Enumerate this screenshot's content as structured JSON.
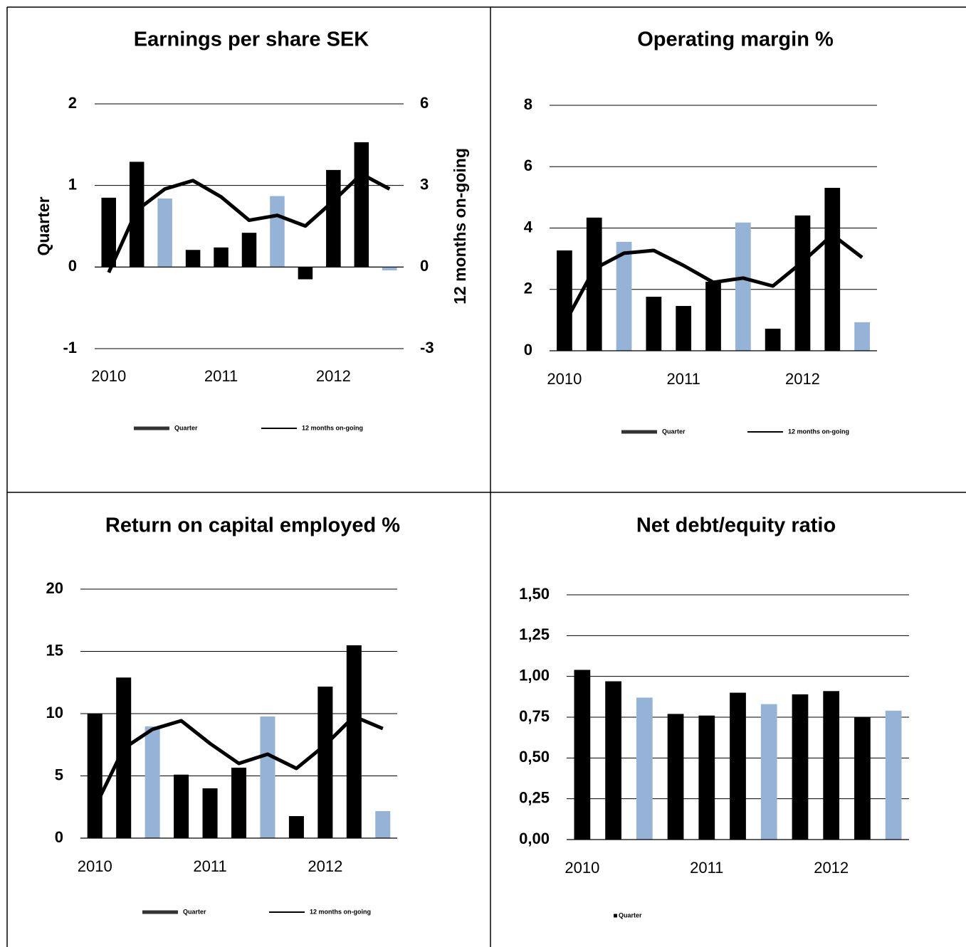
{
  "chart_data": [
    {
      "type": "combo",
      "title": "Earnings per share SEK",
      "categories": [
        "2010",
        null,
        null,
        null,
        "2011",
        null,
        null,
        null,
        "2012",
        null,
        null
      ],
      "series": [
        {
          "name": "Quarter",
          "type": "bar",
          "color": "#000000",
          "colors": [
            "#000000",
            "#000000",
            "#95b3d7",
            "#000000",
            "#000000",
            "#000000",
            "#95b3d7",
            "#000000",
            "#000000",
            "#000000",
            "#95b3d7"
          ],
          "values": [
            0.85,
            1.29,
            0.84,
            0.21,
            0.24,
            0.42,
            0.87,
            -0.15,
            1.19,
            1.53,
            -0.04
          ]
        },
        {
          "name": "12 months on-going",
          "type": "line",
          "color": "#000000",
          "axis": "y2",
          "values": [
            -0.2,
            2.09,
            2.87,
            3.18,
            2.58,
            1.72,
            1.9,
            1.51,
            2.43,
            3.42,
            2.87
          ]
        }
      ],
      "ylim": [
        -1,
        2
      ],
      "yticks": [
        -1,
        0,
        1,
        2
      ],
      "y2lim": [
        -3,
        6
      ],
      "y2ticks": [
        -3,
        0,
        3,
        6
      ],
      "ylabel": "Quarter",
      "y2label": "12 months on-going",
      "grid": true,
      "legend": "bottom"
    },
    {
      "type": "combo",
      "title": "Operating margin %",
      "categories": [
        "2010",
        null,
        null,
        null,
        "2011",
        null,
        null,
        null,
        "2012",
        null,
        null
      ],
      "series": [
        {
          "name": "Quarter",
          "type": "bar",
          "color": "#000000",
          "colors": [
            "#000000",
            "#000000",
            "#95b3d7",
            "#000000",
            "#000000",
            "#000000",
            "#95b3d7",
            "#000000",
            "#000000",
            "#000000",
            "#95b3d7"
          ],
          "values": [
            3.27,
            4.34,
            3.55,
            1.76,
            1.46,
            2.25,
            4.18,
            0.72,
            4.41,
            5.31,
            0.93
          ]
        },
        {
          "name": "12 months on-going",
          "type": "line",
          "color": "#000000",
          "values": [
            0.88,
            2.67,
            3.18,
            3.27,
            2.78,
            2.23,
            2.37,
            2.11,
            2.9,
            3.78,
            3.04
          ]
        }
      ],
      "ylim": [
        0,
        8
      ],
      "yticks": [
        0,
        2,
        4,
        6,
        8
      ],
      "grid": true,
      "legend": "bottom"
    },
    {
      "type": "combo",
      "title": "Return on capital employed %",
      "categories": [
        "2010",
        null,
        null,
        null,
        "2011",
        null,
        null,
        null,
        "2012",
        null,
        null
      ],
      "series": [
        {
          "name": "Quarter",
          "type": "bar",
          "color": "#000000",
          "colors": [
            "#000000",
            "#000000",
            "#95b3d7",
            "#000000",
            "#000000",
            "#000000",
            "#95b3d7",
            "#000000",
            "#000000",
            "#000000",
            "#95b3d7"
          ],
          "values": [
            10,
            12.9,
            8.97,
            5.1,
            4.0,
            5.66,
            9.77,
            1.77,
            12.17,
            15.49,
            2.17
          ]
        },
        {
          "name": "12 months on-going",
          "type": "line",
          "color": "#000000",
          "values": [
            2.46,
            7.2,
            8.74,
            9.43,
            7.6,
            6.0,
            6.74,
            5.6,
            7.49,
            9.77,
            8.8
          ]
        }
      ],
      "ylim": [
        0,
        20
      ],
      "yticks": [
        0,
        5,
        10,
        15,
        20
      ],
      "grid": true,
      "legend": "bottom"
    },
    {
      "type": "bar",
      "title": "Net debt/equity ratio",
      "categories": [
        "2010",
        null,
        null,
        null,
        "2011",
        null,
        null,
        null,
        "2012",
        null,
        null
      ],
      "series": [
        {
          "name": "Quarter",
          "type": "bar",
          "color": "#000000",
          "colors": [
            "#000000",
            "#000000",
            "#95b3d7",
            "#000000",
            "#000000",
            "#000000",
            "#95b3d7",
            "#000000",
            "#000000",
            "#000000",
            "#95b3d7"
          ],
          "values": [
            1.04,
            0.97,
            0.87,
            0.77,
            0.76,
            0.9,
            0.83,
            0.89,
            0.91,
            0.75,
            0.79
          ]
        }
      ],
      "ylim": [
        0,
        1.5
      ],
      "yticks": [
        {
          "value": 0,
          "label": "0,00"
        },
        {
          "value": 0.25,
          "label": "0,25"
        },
        {
          "value": 0.5,
          "label": "0,50"
        },
        {
          "value": 0.75,
          "label": "0,75"
        },
        {
          "value": 1,
          "label": "1,00"
        },
        {
          "value": 1.25,
          "label": "1,25"
        },
        {
          "value": 1.5,
          "label": "1,50"
        }
      ],
      "grid": true,
      "legend": "bottom"
    }
  ]
}
